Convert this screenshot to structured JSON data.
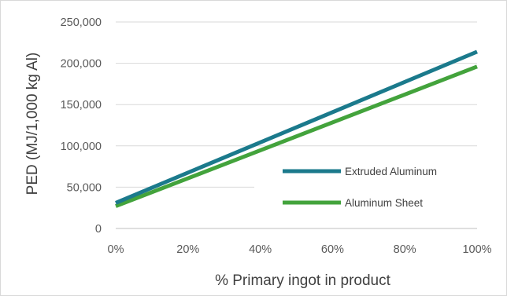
{
  "chart_data": {
    "type": "line",
    "title": "",
    "xlabel": "% Primary ingot in product",
    "ylabel": "PED (MJ/1,000 kg Al)",
    "x": [
      0,
      100
    ],
    "x_tick_values": [
      0,
      20,
      40,
      60,
      80,
      100
    ],
    "x_tick_labels": [
      "0%",
      "20%",
      "40%",
      "60%",
      "80%",
      "100%"
    ],
    "xlim": [
      0,
      100
    ],
    "y_tick_values": [
      0,
      50000,
      100000,
      150000,
      200000,
      250000
    ],
    "y_tick_labels": [
      "0",
      "50,000",
      "100,000",
      "150,000",
      "200,000",
      "250,000"
    ],
    "ylim": [
      0,
      250000
    ],
    "grid": "horizontal",
    "legend_position": "right",
    "series": [
      {
        "name": "Extruded Aluminum",
        "color": "#1b7a8c",
        "values": [
          31000,
          214000
        ]
      },
      {
        "name": "Aluminum Sheet",
        "color": "#43a33c",
        "values": [
          27000,
          196000
        ]
      }
    ]
  }
}
